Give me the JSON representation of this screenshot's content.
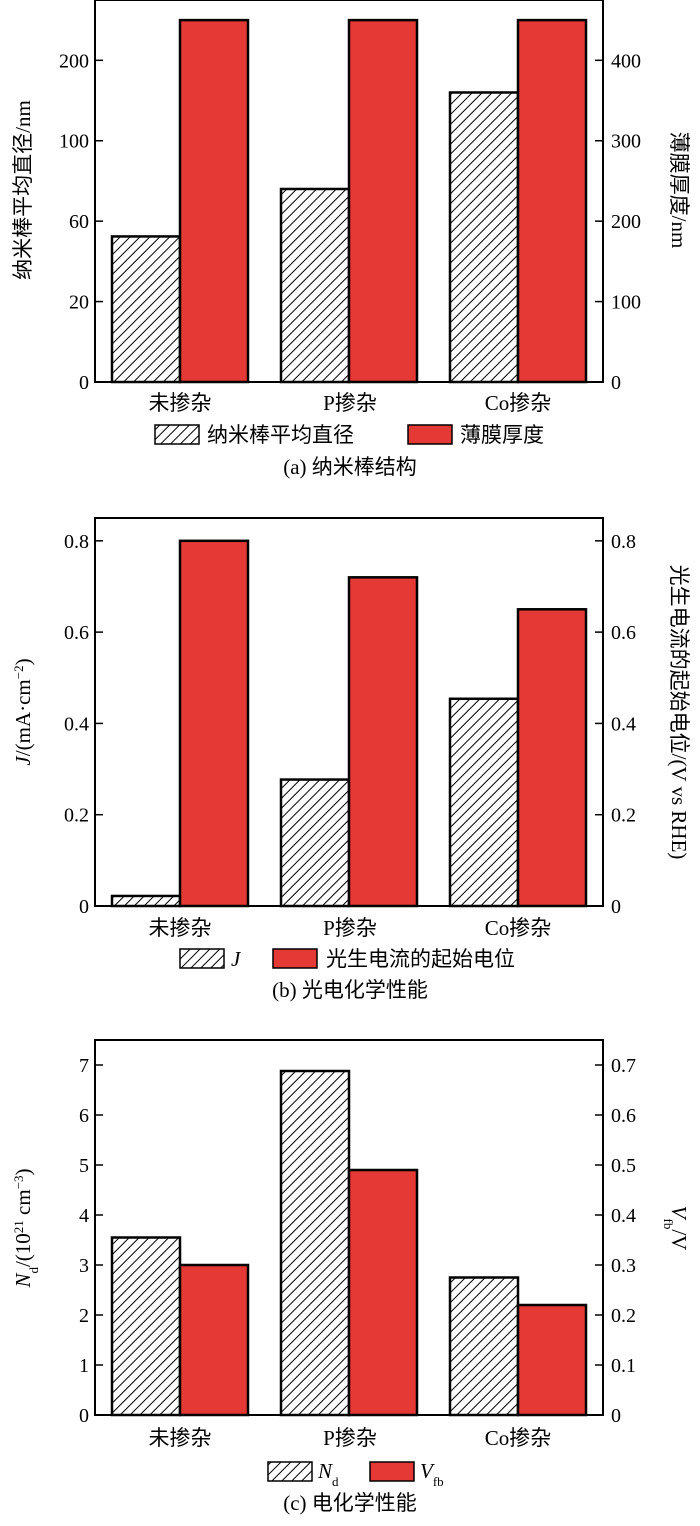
{
  "colors": {
    "red": "#e53935",
    "frame": "#000000",
    "hatch_bg": "#ffffff"
  },
  "chart_data": [
    {
      "type": "bar",
      "categories": [
        "未掺杂",
        "P掺杂",
        "Co掺杂"
      ],
      "caption": "(a) 纳米棒结构",
      "left_axis": {
        "label": "纳米棒平均直径/nm",
        "ticks": [
          0,
          20,
          60,
          100,
          200
        ],
        "tick_positions": [
          0,
          100,
          200,
          300,
          400
        ],
        "ylim": [
          0,
          475
        ]
      },
      "right_axis": {
        "label": "薄膜厚度/nm",
        "ticks": [
          0,
          100,
          200,
          300,
          400
        ],
        "ylim": [
          0,
          475
        ]
      },
      "series": [
        {
          "name": "纳米棒平均直径",
          "axis": "left",
          "pattern": "hatch",
          "values": [
            52,
            75,
            150
          ],
          "scale_positions": [
            181,
            240,
            360
          ]
        },
        {
          "name": "薄膜厚度",
          "axis": "right",
          "pattern": "red",
          "values": [
            450,
            450,
            450
          ]
        }
      ]
    },
    {
      "type": "bar",
      "categories": [
        "未掺杂",
        "P掺杂",
        "Co掺杂"
      ],
      "caption": "(b) 光电化学性能",
      "left_axis": {
        "label_italic": "J",
        "label_rest": "/(mA·cm",
        "label_sup": "−2",
        "label_end": ")",
        "ticks": [
          0,
          0.2,
          0.4,
          0.6,
          0.8
        ],
        "tick_labels": [
          "0",
          "0.2",
          "0.4",
          "0.6",
          "0.8"
        ],
        "ylim": [
          0,
          0.85
        ]
      },
      "right_axis": {
        "label": "光生电流的起始电位/(V vs RHE)",
        "ticks": [
          0,
          0.2,
          0.4,
          0.6,
          0.8
        ],
        "tick_labels": [
          "0",
          "0.2",
          "0.4",
          "0.6",
          "0.8"
        ],
        "ylim": [
          0,
          0.85
        ]
      },
      "series": [
        {
          "name": "J",
          "axis": "left",
          "pattern": "hatch",
          "values": [
            0.022,
            0.277,
            0.454
          ]
        },
        {
          "name": "光生电流的起始电位",
          "axis": "right",
          "pattern": "red",
          "values": [
            0.8,
            0.72,
            0.65
          ]
        }
      ]
    },
    {
      "type": "bar",
      "categories": [
        "未掺杂",
        "P掺杂",
        "Co掺杂"
      ],
      "caption": "(c) 电化学性能",
      "left_axis": {
        "label_italic": "N",
        "label_sub": "d",
        "label_rest": "/(10",
        "label_sup": "21",
        "label_end": " cm",
        "label_sup2": "−3",
        "label_close": ")",
        "ticks": [
          0,
          1,
          2,
          3,
          4,
          5,
          6,
          7
        ],
        "tick_labels": [
          "0",
          "1",
          "2",
          "3",
          "4",
          "5",
          "6",
          "7"
        ],
        "ylim": [
          0,
          7.5
        ]
      },
      "right_axis": {
        "label_italic": "V",
        "label_sub": "fb",
        "label_rest": "/V",
        "ticks": [
          0,
          0.1,
          0.2,
          0.3,
          0.4,
          0.5,
          0.6,
          0.7
        ],
        "tick_labels": [
          "0",
          "0.1",
          "0.2",
          "0.3",
          "0.4",
          "0.5",
          "0.6",
          "0.7"
        ],
        "ylim": [
          0,
          0.75
        ]
      },
      "series": [
        {
          "name": "N",
          "name_sub": "d",
          "axis": "left",
          "pattern": "hatch",
          "values": [
            3.55,
            6.88,
            2.75
          ]
        },
        {
          "name": "V",
          "name_sub": "fb",
          "axis": "right",
          "pattern": "red",
          "values": [
            0.3,
            0.49,
            0.22
          ]
        }
      ]
    }
  ]
}
